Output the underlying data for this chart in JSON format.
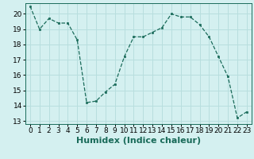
{
  "x": [
    0,
    1,
    2,
    3,
    4,
    5,
    6,
    7,
    8,
    9,
    10,
    11,
    12,
    13,
    14,
    15,
    16,
    17,
    18,
    19,
    20,
    21,
    22,
    23
  ],
  "y": [
    20.5,
    19.0,
    19.7,
    19.4,
    19.4,
    18.3,
    14.2,
    14.3,
    14.9,
    15.4,
    17.2,
    18.5,
    18.5,
    18.8,
    19.1,
    20.0,
    19.8,
    19.8,
    19.3,
    18.5,
    17.2,
    15.9,
    13.2,
    13.6
  ],
  "xlabel": "Humidex (Indice chaleur)",
  "xlim": [
    -0.5,
    23.5
  ],
  "ylim": [
    12.8,
    20.7
  ],
  "yticks": [
    13,
    14,
    15,
    16,
    17,
    18,
    19,
    20
  ],
  "xticks": [
    0,
    1,
    2,
    3,
    4,
    5,
    6,
    7,
    8,
    9,
    10,
    11,
    12,
    13,
    14,
    15,
    16,
    17,
    18,
    19,
    20,
    21,
    22,
    23
  ],
  "line_color": "#1a6b5a",
  "marker_color": "#1a6b5a",
  "bg_color": "#d4f0f0",
  "grid_color": "#b8dede",
  "xlabel_fontsize": 8,
  "tick_fontsize": 6.5
}
